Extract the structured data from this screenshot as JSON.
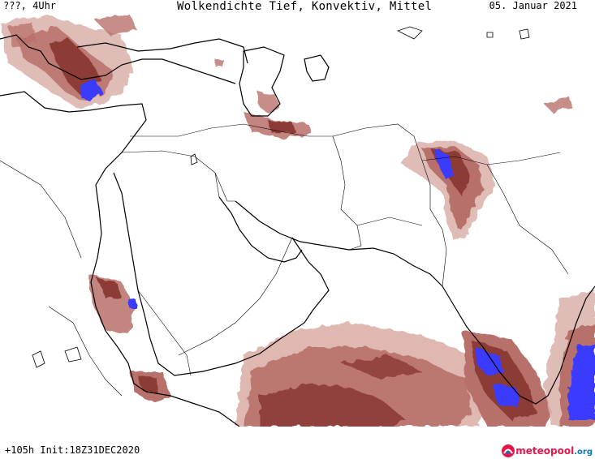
{
  "header": {
    "time_label": "???, 4Uhr",
    "title": "Wolkendichte  Tief, Konvektiv, Mittel",
    "date": "05. Januar 2021"
  },
  "footer": {
    "run_info": "+105h Init:18Z31DEC2020"
  },
  "logo": {
    "brand": "meteopool",
    "tld": ".org",
    "icon": "meteopool-logo-icon"
  },
  "colors": {
    "cloud_light": "#dbb0aa",
    "cloud_medium": "#b8706a",
    "cloud_dark": "#8c3a36",
    "cloud_dense": "#3b3bff",
    "coastline": "#000000",
    "border": "#000000"
  }
}
